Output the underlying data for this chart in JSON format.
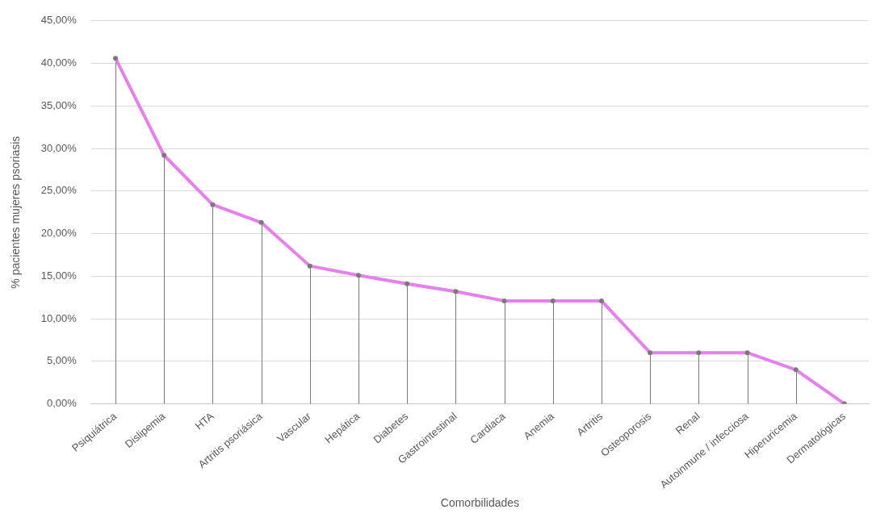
{
  "chart_data": {
    "type": "line",
    "xlabel": "Comorbilidades",
    "ylabel": "% pacientes mujeres psoriasis",
    "categories": [
      "Psiquiátrica",
      "Dislipemia",
      "HTA",
      "Artritis psoriásica",
      "Vascular",
      "Hepática",
      "Diabetes",
      "Gastrointestinal",
      "Cardiaca",
      "Anemia",
      "Artritis",
      "Osteoporosis",
      "Renal",
      "Autoinmune / infecciosa",
      "Hiperuricemia",
      "Dermatológicas"
    ],
    "series": [
      {
        "type": "lollipop",
        "color": "#7a7a7a",
        "marker": "circle",
        "values": [
          40.6,
          29.2,
          23.4,
          21.3,
          16.2,
          15.1,
          14.1,
          13.2,
          12.1,
          12.1,
          12.1,
          6.0,
          6.0,
          6.0,
          4.0,
          0
        ]
      },
      {
        "color": "#e680ee",
        "values": [
          40.6,
          29.2,
          23.4,
          21.3,
          16.2,
          15.1,
          14.1,
          13.2,
          12.1,
          12.1,
          12.1,
          6.0,
          6.0,
          6.0,
          4.0,
          0
        ]
      }
    ],
    "ylim": [
      0,
      45
    ],
    "yticks": [
      {
        "value": 0,
        "label": "0,00%"
      },
      {
        "value": 5,
        "label": "5,00%"
      },
      {
        "value": 10,
        "label": "10,00%"
      },
      {
        "value": 15,
        "label": "15,00%"
      },
      {
        "value": 20,
        "label": "20,00%"
      },
      {
        "value": 25,
        "label": "25,00%"
      },
      {
        "value": 30,
        "label": "30,00%"
      },
      {
        "value": 35,
        "label": "35,00%"
      },
      {
        "value": 40,
        "label": "40,00%"
      },
      {
        "value": 45,
        "label": "45,00%"
      }
    ],
    "grid": "y",
    "legend": false,
    "marker": "none",
    "line_style": "solid"
  }
}
